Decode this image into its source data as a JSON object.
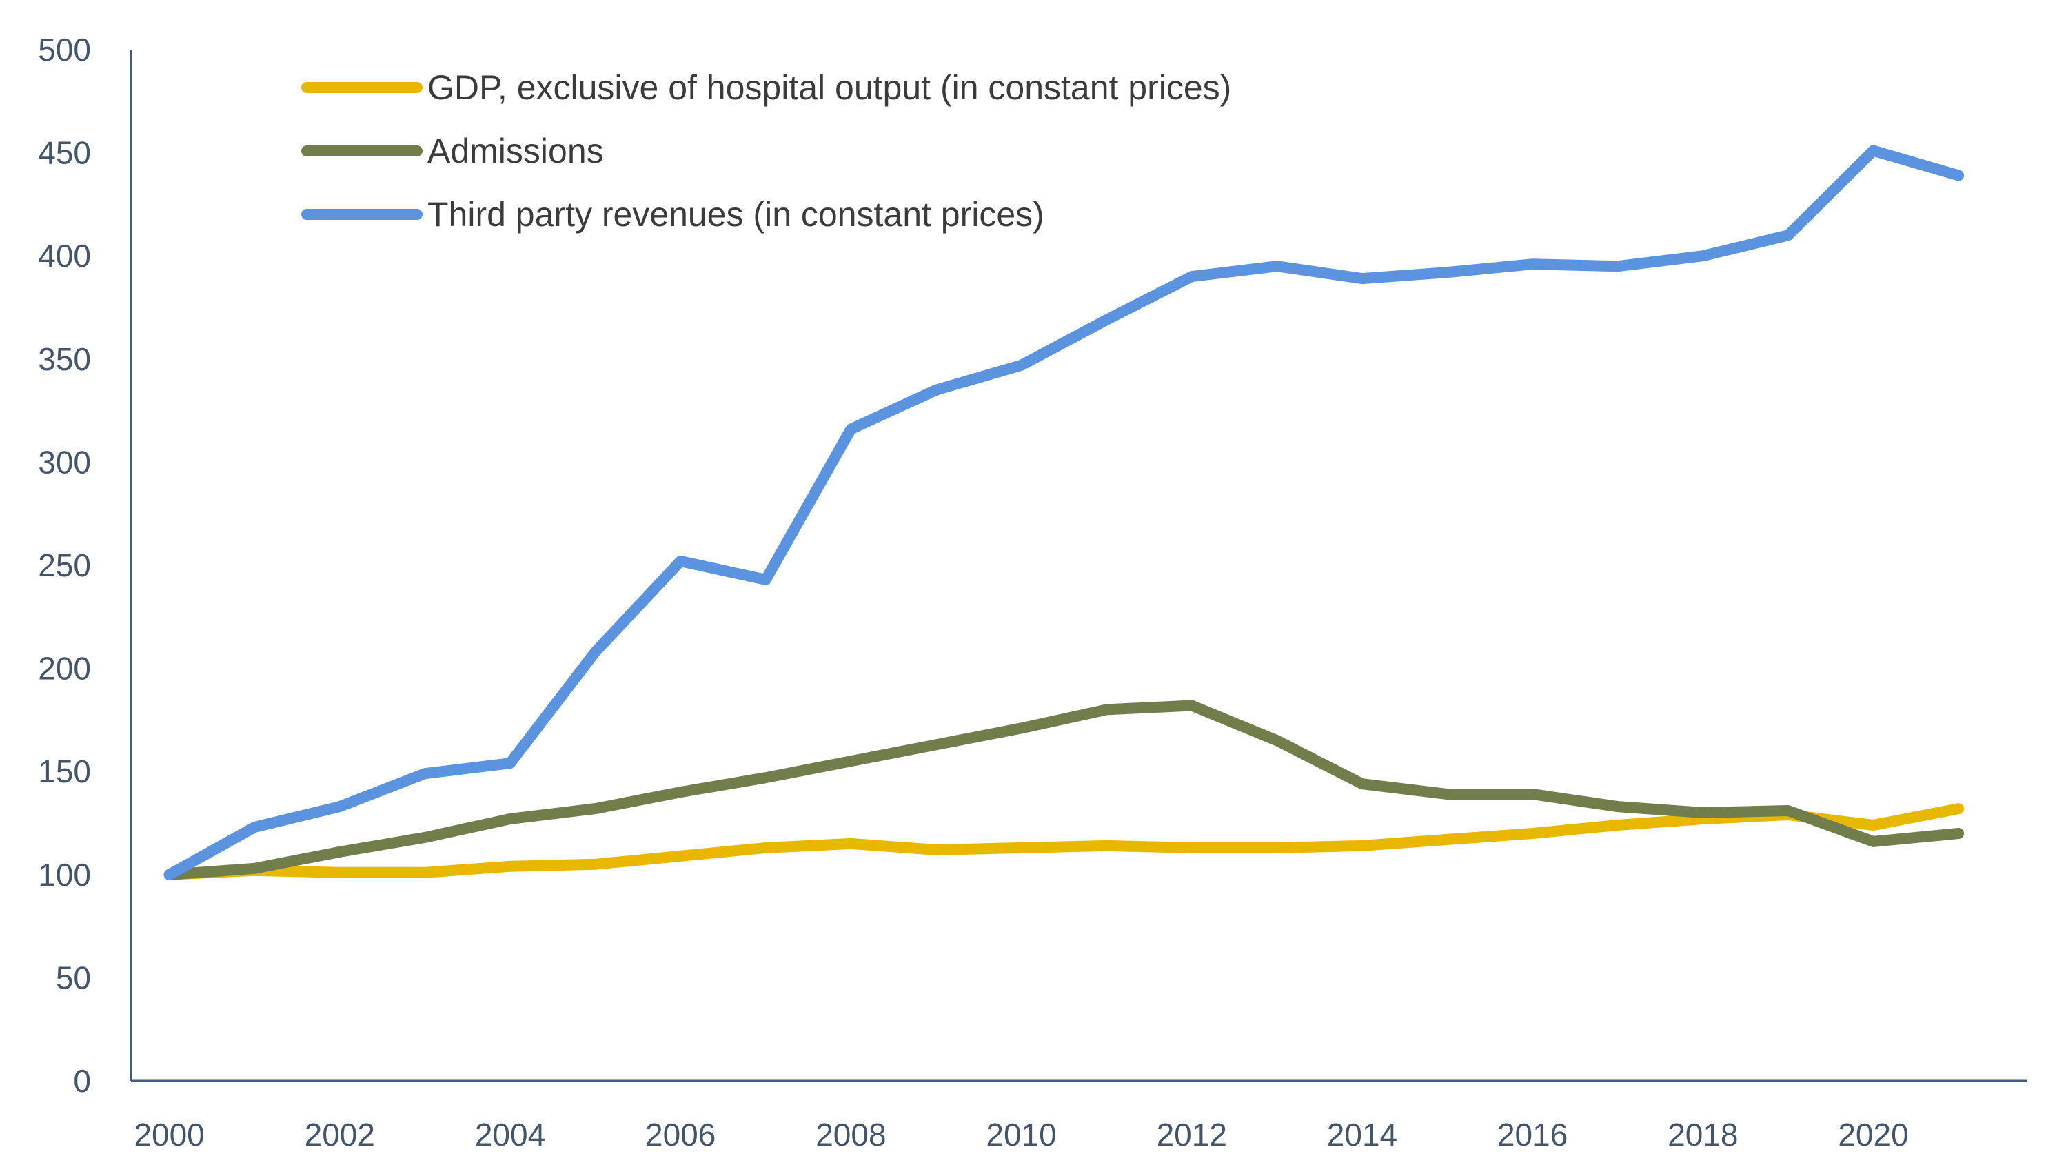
{
  "chart_data": {
    "type": "line",
    "title": "",
    "xlabel": "",
    "ylabel": "",
    "x": [
      2000,
      2001,
      2002,
      2003,
      2004,
      2005,
      2006,
      2007,
      2008,
      2009,
      2010,
      2011,
      2012,
      2013,
      2014,
      2015,
      2016,
      2017,
      2018,
      2019,
      2020,
      2021
    ],
    "x_tick_labels": [
      "2000",
      "2002",
      "2004",
      "2006",
      "2008",
      "2010",
      "2012",
      "2014",
      "2016",
      "2018",
      "2020"
    ],
    "y_tick_labels": [
      "0",
      "50",
      "100",
      "150",
      "200",
      "250",
      "300",
      "350",
      "400",
      "450",
      "500"
    ],
    "ylim": [
      0,
      500
    ],
    "xlim": [
      1999.55,
      2021.8
    ],
    "grid": false,
    "legend_position": "top-left",
    "series": [
      {
        "name": "GDP, exclusive of hospital output (in constant prices)",
        "color": "#e8b800",
        "values": [
          100,
          102,
          101,
          101,
          104,
          105,
          109,
          113,
          115,
          112,
          113,
          114,
          113,
          113,
          114,
          117,
          120,
          124,
          127,
          129,
          124,
          132
        ]
      },
      {
        "name": "Admissions",
        "color": "#717d4b",
        "values": [
          100,
          103,
          111,
          118,
          127,
          132,
          140,
          147,
          155,
          163,
          171,
          180,
          182,
          165,
          144,
          139,
          139,
          133,
          130,
          131,
          116,
          120
        ]
      },
      {
        "name": "Third party revenues (in constant prices)",
        "color": "#5b93de",
        "values": [
          100,
          123,
          133,
          149,
          154,
          208,
          252,
          243,
          316,
          335,
          347,
          369,
          390,
          395,
          389,
          392,
          396,
          395,
          400,
          410,
          451,
          439
        ]
      }
    ]
  }
}
